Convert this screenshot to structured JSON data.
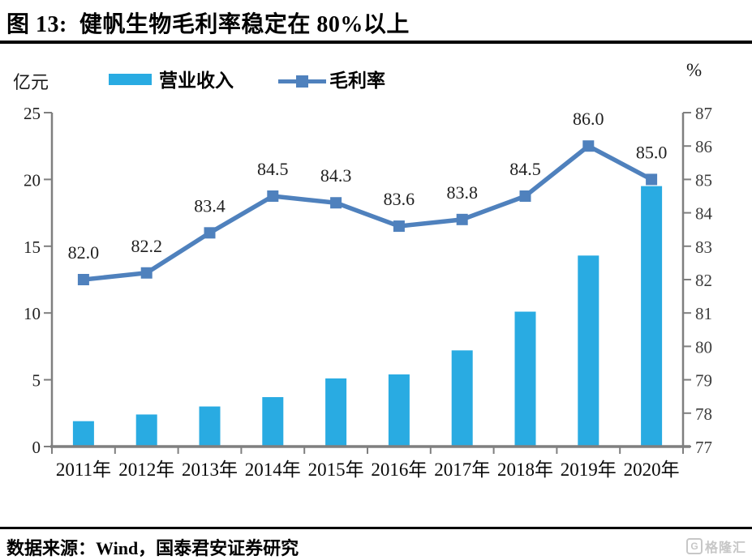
{
  "title": "图 13:  健帆生物毛利率稳定在 80%以上",
  "footer": {
    "source_text": "数据来源：Wind，国泰君安证券研究",
    "watermark": "格隆汇",
    "watermark_icon": "G"
  },
  "colors": {
    "bar": "#29ABE2",
    "line": "#4F81BD",
    "axis": "#7f7f7f",
    "rule": "#000000",
    "watermark": "#c7c7c7"
  },
  "chart_data": {
    "type": "bar+line combo",
    "title": "健帆生物毛利率稳定在 80%以上",
    "categories": [
      "2011年",
      "2012年",
      "2013年",
      "2014年",
      "2015年",
      "2016年",
      "2017年",
      "2018年",
      "2019年",
      "2020年"
    ],
    "series": [
      {
        "name": "营业收入",
        "type": "bar",
        "axis": "left",
        "unit": "亿元",
        "color": "#29ABE2",
        "values": [
          1.9,
          2.4,
          3.0,
          3.7,
          5.1,
          5.4,
          7.2,
          10.1,
          14.3,
          19.5
        ]
      },
      {
        "name": "毛利率",
        "type": "line",
        "axis": "right",
        "unit": "%",
        "color": "#4F81BD",
        "values": [
          82.0,
          82.2,
          83.4,
          84.5,
          84.3,
          83.6,
          83.8,
          84.5,
          86.0,
          85.0
        ]
      }
    ],
    "data_labels": [
      "82.0",
      "82.2",
      "83.4",
      "84.5",
      "84.3",
      "83.6",
      "83.8",
      "84.5",
      "86.0",
      "85.0"
    ],
    "left_axis": {
      "label": "亿元",
      "min": 0,
      "max": 25,
      "step": 5,
      "ticks": [
        "0",
        "5",
        "10",
        "15",
        "20",
        "25"
      ]
    },
    "right_axis": {
      "label": "%",
      "min": 77,
      "max": 87,
      "step": 1,
      "ticks": [
        "77",
        "78",
        "79",
        "80",
        "81",
        "82",
        "83",
        "84",
        "85",
        "86",
        "87"
      ]
    },
    "legend_position": "top",
    "grid": false
  }
}
